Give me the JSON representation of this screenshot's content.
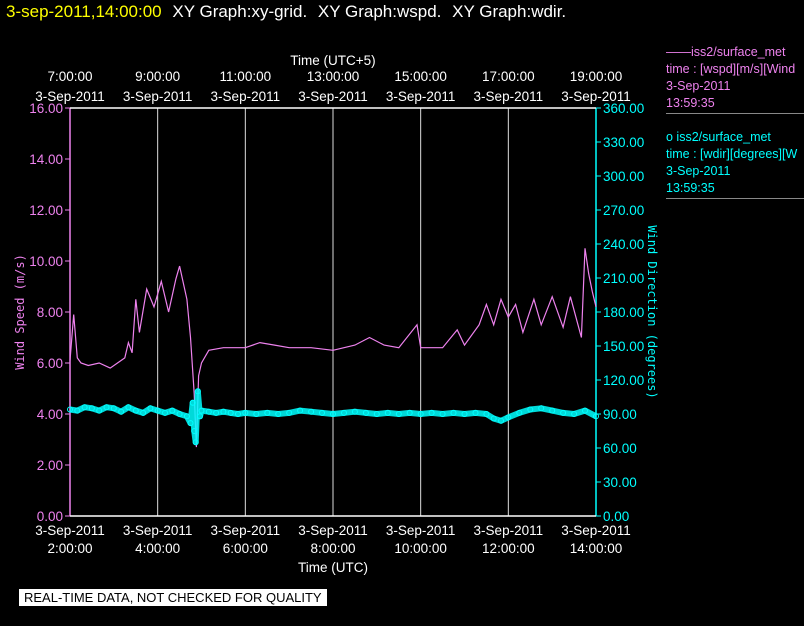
{
  "header": {
    "timestamp": "3-sep-2011,14:00:00",
    "graphs": [
      "XY Graph:xy-grid.",
      "XY Graph:wspd.",
      "XY Graph:wdir."
    ]
  },
  "legend": [
    {
      "line1": "——iss2/surface_met",
      "line2": "time : [wspd][m/s][Wind",
      "line3": "3-Sep-2011",
      "line4": "13:59:35",
      "color": "#ee82ee",
      "marker": "line"
    },
    {
      "line1": "o  iss2/surface_met",
      "line2": "time : [wdir][degrees][W",
      "line3": "3-Sep-2011",
      "line4": "13:59:35",
      "color": "#00ffff",
      "marker": "circle"
    }
  ],
  "disclaimer": "REAL-TIME DATA, NOT CHECKED FOR QUALITY",
  "chart_data": {
    "type": "line",
    "top_axis_title": "Time (UTC+5)",
    "top_ticks": [
      {
        "time": "7:00:00",
        "date": "3-Sep-2011"
      },
      {
        "time": "9:00:00",
        "date": "3-Sep-2011"
      },
      {
        "time": "11:00:00",
        "date": "3-Sep-2011"
      },
      {
        "time": "13:00:00",
        "date": "3-Sep-2011"
      },
      {
        "time": "15:00:00",
        "date": "3-Sep-2011"
      },
      {
        "time": "17:00:00",
        "date": "3-Sep-2011"
      },
      {
        "time": "19:00:00",
        "date": "3-Sep-2011"
      }
    ],
    "xlabel": "Time (UTC)",
    "x_ticks": [
      {
        "time": "2:00:00",
        "date": "3-Sep-2011"
      },
      {
        "time": "4:00:00",
        "date": "3-Sep-2011"
      },
      {
        "time": "6:00:00",
        "date": "3-Sep-2011"
      },
      {
        "time": "8:00:00",
        "date": "3-Sep-2011"
      },
      {
        "time": "10:00:00",
        "date": "3-Sep-2011"
      },
      {
        "time": "12:00:00",
        "date": "3-Sep-2011"
      },
      {
        "time": "14:00:00",
        "date": "3-Sep-2011"
      }
    ],
    "xlim": [
      "02:00",
      "14:00"
    ],
    "ylabel_left": "Wind Speed (m/s)",
    "ylim_left": [
      0,
      16
    ],
    "y_ticks_left": [
      "0.00",
      "2.00",
      "4.00",
      "6.00",
      "8.00",
      "10.00",
      "12.00",
      "14.00",
      "16.00"
    ],
    "ylabel_right": "Wind Direction (degrees)",
    "ylim_right": [
      0,
      360
    ],
    "y_ticks_right": [
      "0.00",
      "30.00",
      "60.00",
      "90.00",
      "120.00",
      "150.00",
      "180.00",
      "210.00",
      "240.00",
      "270.00",
      "300.00",
      "330.00",
      "360.00"
    ],
    "grid": "vertical",
    "series": [
      {
        "name": "iss2/surface_met time : [wspd][m/s]",
        "axis": "left",
        "color": "#ee82ee",
        "style": "line",
        "points": [
          [
            "02:00",
            6.1
          ],
          [
            "02:05",
            7.9
          ],
          [
            "02:10",
            6.2
          ],
          [
            "02:15",
            6.0
          ],
          [
            "02:25",
            5.9
          ],
          [
            "02:40",
            6.0
          ],
          [
            "02:55",
            5.8
          ],
          [
            "03:05",
            6.0
          ],
          [
            "03:15",
            6.2
          ],
          [
            "03:20",
            6.8
          ],
          [
            "03:25",
            6.4
          ],
          [
            "03:30",
            8.5
          ],
          [
            "03:35",
            7.2
          ],
          [
            "03:45",
            8.9
          ],
          [
            "03:55",
            8.2
          ],
          [
            "04:05",
            9.2
          ],
          [
            "04:15",
            8.0
          ],
          [
            "04:25",
            9.3
          ],
          [
            "04:30",
            9.8
          ],
          [
            "04:40",
            8.5
          ],
          [
            "04:45",
            7.0
          ],
          [
            "04:50",
            4.8
          ],
          [
            "04:53",
            2.7
          ],
          [
            "04:56",
            5.5
          ],
          [
            "05:00",
            6.0
          ],
          [
            "05:10",
            6.5
          ],
          [
            "05:30",
            6.6
          ],
          [
            "06:00",
            6.6
          ],
          [
            "06:20",
            6.8
          ],
          [
            "06:40",
            6.7
          ],
          [
            "07:00",
            6.6
          ],
          [
            "07:30",
            6.6
          ],
          [
            "08:00",
            6.5
          ],
          [
            "08:30",
            6.7
          ],
          [
            "08:50",
            7.0
          ],
          [
            "09:10",
            6.7
          ],
          [
            "09:30",
            6.6
          ],
          [
            "09:55",
            7.5
          ],
          [
            "10:00",
            6.6
          ],
          [
            "10:30",
            6.6
          ],
          [
            "10:50",
            7.3
          ],
          [
            "11:00",
            6.7
          ],
          [
            "11:20",
            7.5
          ],
          [
            "11:30",
            8.3
          ],
          [
            "11:40",
            7.5
          ],
          [
            "11:50",
            8.5
          ],
          [
            "12:00",
            7.8
          ],
          [
            "12:10",
            8.3
          ],
          [
            "12:20",
            7.2
          ],
          [
            "12:35",
            8.5
          ],
          [
            "12:45",
            7.5
          ],
          [
            "13:00",
            8.6
          ],
          [
            "13:15",
            7.4
          ],
          [
            "13:25",
            8.6
          ],
          [
            "13:40",
            7.0
          ],
          [
            "13:45",
            10.5
          ],
          [
            "13:50",
            9.5
          ],
          [
            "13:55",
            8.8
          ],
          [
            "14:00",
            8.2
          ]
        ]
      },
      {
        "name": "iss2/surface_met time : [wdir][degrees]",
        "axis": "right",
        "color": "#00ffff",
        "style": "circle",
        "points": [
          [
            "02:00",
            94
          ],
          [
            "02:10",
            93
          ],
          [
            "02:20",
            96
          ],
          [
            "02:30",
            95
          ],
          [
            "02:40",
            93
          ],
          [
            "02:50",
            96
          ],
          [
            "03:00",
            95
          ],
          [
            "03:10",
            92
          ],
          [
            "03:20",
            96
          ],
          [
            "03:30",
            93
          ],
          [
            "03:40",
            91
          ],
          [
            "03:50",
            95
          ],
          [
            "04:00",
            93
          ],
          [
            "04:10",
            91
          ],
          [
            "04:20",
            93
          ],
          [
            "04:30",
            90
          ],
          [
            "04:40",
            88
          ],
          [
            "04:45",
            82
          ],
          [
            "04:48",
            100
          ],
          [
            "04:50",
            75
          ],
          [
            "04:52",
            65
          ],
          [
            "04:55",
            110
          ],
          [
            "04:58",
            88
          ],
          [
            "05:00",
            93
          ],
          [
            "05:10",
            92
          ],
          [
            "05:20",
            91
          ],
          [
            "05:30",
            92
          ],
          [
            "05:40",
            91
          ],
          [
            "05:50",
            90
          ],
          [
            "06:00",
            91
          ],
          [
            "06:15",
            90
          ],
          [
            "06:30",
            91
          ],
          [
            "06:45",
            90
          ],
          [
            "07:00",
            91
          ],
          [
            "07:15",
            93
          ],
          [
            "07:30",
            92
          ],
          [
            "07:45",
            91
          ],
          [
            "08:00",
            90
          ],
          [
            "08:15",
            91
          ],
          [
            "08:30",
            92
          ],
          [
            "08:45",
            91
          ],
          [
            "09:00",
            90
          ],
          [
            "09:15",
            91
          ],
          [
            "09:30",
            90
          ],
          [
            "09:45",
            91
          ],
          [
            "10:00",
            90
          ],
          [
            "10:15",
            91
          ],
          [
            "10:30",
            90
          ],
          [
            "10:45",
            91
          ],
          [
            "11:00",
            90
          ],
          [
            "11:15",
            91
          ],
          [
            "11:30",
            90
          ],
          [
            "11:40",
            86
          ],
          [
            "11:50",
            84
          ],
          [
            "12:00",
            87
          ],
          [
            "12:15",
            91
          ],
          [
            "12:30",
            94
          ],
          [
            "12:45",
            95
          ],
          [
            "13:00",
            93
          ],
          [
            "13:15",
            91
          ],
          [
            "13:30",
            90
          ],
          [
            "13:45",
            93
          ],
          [
            "14:00",
            88
          ]
        ]
      }
    ]
  }
}
